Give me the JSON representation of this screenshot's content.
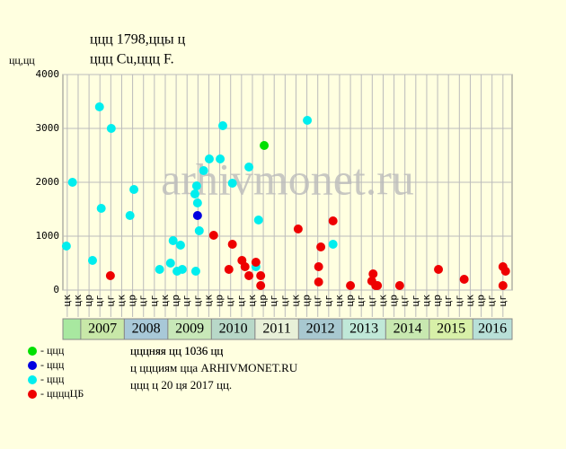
{
  "chart_data": {
    "type": "scatter",
    "title": "ццц 1798,ццы ц",
    "subtitle": "ццц Cu,ццц F.",
    "y_label": "цц,цц",
    "watermark": "arhivmonet.ru",
    "notes": [
      "цццняя цц 1036 цц",
      "ц ццциям цца ARHIVMONET.RU",
      "ццц ц 20 ця 2017 цц."
    ],
    "xlim": [
      2006.59,
      2016.9
    ],
    "ylim": [
      0,
      4000
    ],
    "yticks": [
      0,
      1000,
      2000,
      3000,
      4000
    ],
    "grid": true,
    "xticks": [
      {
        "value": 2006.69,
        "label": "цк"
      },
      {
        "value": 2006.94,
        "label": "цк"
      },
      {
        "value": 2007.19,
        "label": "цр"
      },
      {
        "value": 2007.44,
        "label": "цг"
      },
      {
        "value": 2007.69,
        "label": "цг"
      },
      {
        "value": 2007.94,
        "label": "цк"
      },
      {
        "value": 2008.19,
        "label": "цр"
      },
      {
        "value": 2008.44,
        "label": "цг"
      },
      {
        "value": 2008.69,
        "label": "цг"
      },
      {
        "value": 2008.94,
        "label": "цк"
      },
      {
        "value": 2009.19,
        "label": "цр"
      },
      {
        "value": 2009.44,
        "label": "цг"
      },
      {
        "value": 2009.69,
        "label": "цг"
      },
      {
        "value": 2009.94,
        "label": "цк"
      },
      {
        "value": 2010.19,
        "label": "цр"
      },
      {
        "value": 2010.44,
        "label": "цг"
      },
      {
        "value": 2010.69,
        "label": "цг"
      },
      {
        "value": 2010.94,
        "label": "цк"
      },
      {
        "value": 2011.19,
        "label": "цр"
      },
      {
        "value": 2011.44,
        "label": "цг"
      },
      {
        "value": 2011.69,
        "label": "цг"
      },
      {
        "value": 2011.94,
        "label": "цк"
      },
      {
        "value": 2012.19,
        "label": "цр"
      },
      {
        "value": 2012.44,
        "label": "цг"
      },
      {
        "value": 2012.69,
        "label": "цг"
      },
      {
        "value": 2012.94,
        "label": "цк"
      },
      {
        "value": 2013.19,
        "label": "цр"
      },
      {
        "value": 2013.44,
        "label": "цг"
      },
      {
        "value": 2013.69,
        "label": "цг"
      },
      {
        "value": 2013.94,
        "label": "цк"
      },
      {
        "value": 2014.19,
        "label": "цр"
      },
      {
        "value": 2014.44,
        "label": "цг"
      },
      {
        "value": 2014.69,
        "label": "цг"
      },
      {
        "value": 2014.94,
        "label": "цк"
      },
      {
        "value": 2015.19,
        "label": "цр"
      },
      {
        "value": 2015.44,
        "label": "цг"
      },
      {
        "value": 2015.69,
        "label": "цг"
      },
      {
        "value": 2015.94,
        "label": "цк"
      },
      {
        "value": 2016.19,
        "label": "цр"
      },
      {
        "value": 2016.44,
        "label": "цг"
      },
      {
        "value": 2016.69,
        "label": "цг"
      }
    ],
    "years": [
      2007,
      2008,
      2009,
      2010,
      2011,
      2012,
      2013,
      2014,
      2015,
      2016
    ],
    "year_colors": [
      "#c8e8a8",
      "#a8c8d8",
      "#c8e8b8",
      "#b8d8c8",
      "#e8f0d8",
      "#a8c8d0",
      "#c0e8d8",
      "#c8e8b0",
      "#d8f0a8",
      "#b8e0d8"
    ],
    "series": [
      {
        "name": "- ццц",
        "color": "#00e000",
        "x": [
          2011.21
        ],
        "values": [
          2683
        ]
      },
      {
        "name": "- ццц",
        "color": "#0000e0",
        "x": [
          2009.68
        ],
        "values": [
          1383
        ]
      },
      {
        "name": "- ццц",
        "color": "#00eeee",
        "x": [
          2006.67,
          2006.81,
          2007.27,
          2007.43,
          2007.47,
          2007.7,
          2008.13,
          2008.22,
          2008.81,
          2009.06,
          2009.12,
          2009.21,
          2009.29,
          2009.33,
          2009.62,
          2009.66,
          2009.68,
          2009.64,
          2009.72,
          2009.82,
          2009.95,
          2010.2,
          2010.26,
          2010.48,
          2010.86,
          2011.02,
          2011.08,
          2012.2,
          2012.79
        ],
        "values": [
          817,
          2000,
          550,
          3400,
          1517,
          3000,
          1383,
          1867,
          383,
          500,
          917,
          350,
          833,
          383,
          1783,
          1933,
          1617,
          350,
          1100,
          2217,
          2433,
          2433,
          3050,
          1983,
          2283,
          433,
          1300,
          3150,
          850
        ]
      },
      {
        "name": "- ццццЦБ",
        "color": "#ee0000",
        "x": [
          2007.68,
          2010.05,
          2010.4,
          2010.48,
          2010.7,
          2010.77,
          2010.86,
          2011.02,
          2011.13,
          2011.13,
          2011.99,
          2012.46,
          2012.46,
          2012.51,
          2012.79,
          2013.19,
          2013.68,
          2013.71,
          2013.77,
          2013.81,
          2014.32,
          2015.21,
          2015.8,
          2016.69,
          2016.69,
          2016.75
        ],
        "values": [
          267,
          1017,
          383,
          850,
          550,
          433,
          267,
          517,
          267,
          83,
          1133,
          433,
          150,
          800,
          1283,
          83,
          167,
          300,
          83,
          83,
          83,
          383,
          200,
          433,
          83,
          350
        ]
      }
    ]
  }
}
